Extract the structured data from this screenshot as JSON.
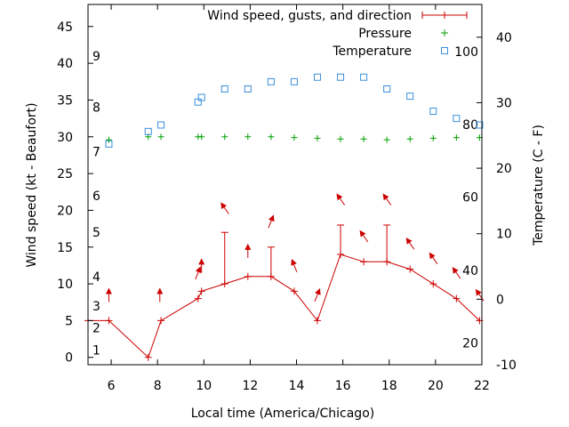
{
  "chart_data": {
    "type": "line",
    "xlabel": "Local time (America/Chicago)",
    "ylabel": "Wind speed (kt - Beaufort)",
    "y2label": "Temperature (C - F)",
    "xlim": [
      5,
      22
    ],
    "ylim": [
      -1,
      48
    ],
    "y2lim": [
      -10,
      45
    ],
    "x_ticks": [
      6,
      8,
      10,
      12,
      14,
      16,
      18,
      20,
      22
    ],
    "y_ticks": [
      0,
      5,
      10,
      15,
      20,
      25,
      30,
      35,
      40,
      45
    ],
    "y2_ticks": [
      -10,
      0,
      10,
      20,
      30,
      40
    ],
    "beaufort_labels": [
      {
        "label": "1",
        "kt": 1
      },
      {
        "label": "2",
        "kt": 4
      },
      {
        "label": "3",
        "kt": 7
      },
      {
        "label": "4",
        "kt": 11
      },
      {
        "label": "5",
        "kt": 17
      },
      {
        "label": "6",
        "kt": 22
      },
      {
        "label": "7",
        "kt": 28
      },
      {
        "label": "8",
        "kt": 34
      },
      {
        "label": "9",
        "kt": 41
      }
    ],
    "fahrenheit_labels": [
      {
        "label": "20",
        "c": -6.7
      },
      {
        "label": "40",
        "c": 4.4
      },
      {
        "label": "60",
        "c": 15.6
      },
      {
        "label": "80",
        "c": 26.7
      },
      {
        "label": "100",
        "c": 37.8
      }
    ],
    "legend_position": "top-right",
    "series": [
      {
        "name": "Wind speed, gusts, and direction",
        "color": "#cc0000",
        "x": [
          5,
          5.9,
          7.6,
          8.15,
          9.75,
          9.9,
          10.9,
          11.9,
          12.9,
          13.9,
          14.9,
          15.9,
          16.9,
          17.9,
          18.9,
          19.9,
          20.9,
          21.9
        ],
        "values": [
          5,
          5,
          0,
          5,
          8,
          9,
          10,
          11,
          11,
          9,
          5,
          14,
          13,
          13,
          12,
          10,
          8,
          5
        ],
        "gusts": [
          {
            "x": 10.9,
            "high": 17
          },
          {
            "x": 12.9,
            "high": 15
          },
          {
            "x": 15.9,
            "high": 18
          },
          {
            "x": 17.9,
            "high": 18
          }
        ],
        "arrows": [
          {
            "x": 5.9,
            "kt": 8.5,
            "dir": "N"
          },
          {
            "x": 8.1,
            "kt": 8.5,
            "dir": "N"
          },
          {
            "x": 9.75,
            "kt": 11.5,
            "dir": "NNE"
          },
          {
            "x": 9.9,
            "kt": 12.5,
            "dir": "N"
          },
          {
            "x": 10.9,
            "kt": 20.3,
            "dir": "NW"
          },
          {
            "x": 11.9,
            "kt": 14.5,
            "dir": "N"
          },
          {
            "x": 12.9,
            "kt": 18.5,
            "dir": "NNE"
          },
          {
            "x": 13.9,
            "kt": 12.5,
            "dir": "NNW"
          },
          {
            "x": 14.9,
            "kt": 8.5,
            "dir": "NNE"
          },
          {
            "x": 15.9,
            "kt": 21.5,
            "dir": "NW"
          },
          {
            "x": 16.9,
            "kt": 16.5,
            "dir": "NW"
          },
          {
            "x": 17.9,
            "kt": 21.5,
            "dir": "NW"
          },
          {
            "x": 18.9,
            "kt": 15.5,
            "dir": "NW"
          },
          {
            "x": 19.9,
            "kt": 13.5,
            "dir": "NW"
          },
          {
            "x": 20.9,
            "kt": 11.5,
            "dir": "NW"
          },
          {
            "x": 21.9,
            "kt": 8.5,
            "dir": "NW"
          }
        ]
      },
      {
        "name": "Pressure",
        "color": "#00a000",
        "x": [
          5.9,
          7.6,
          8.15,
          9.75,
          9.9,
          10.9,
          11.9,
          12.9,
          13.9,
          14.9,
          15.9,
          16.9,
          17.9,
          18.9,
          19.9,
          20.9,
          21.9
        ],
        "values": [
          29.6,
          30,
          30,
          30,
          30,
          30,
          30,
          30,
          29.9,
          29.8,
          29.7,
          29.7,
          29.6,
          29.7,
          29.8,
          29.9,
          29.9
        ]
      },
      {
        "name": "Temperature",
        "color": "#3a8fdc",
        "axis": "right",
        "x": [
          5.9,
          7.6,
          8.15,
          9.75,
          9.9,
          10.9,
          11.9,
          12.9,
          13.9,
          14.9,
          15.9,
          16.9,
          17.9,
          18.9,
          19.9,
          20.9,
          21.9
        ],
        "values": [
          23.7,
          25.6,
          26.6,
          30.1,
          30.8,
          32.1,
          32.1,
          33.2,
          33.2,
          33.9,
          33.9,
          33.9,
          32.1,
          31.0,
          28.7,
          27.6,
          26.6
        ]
      }
    ]
  }
}
